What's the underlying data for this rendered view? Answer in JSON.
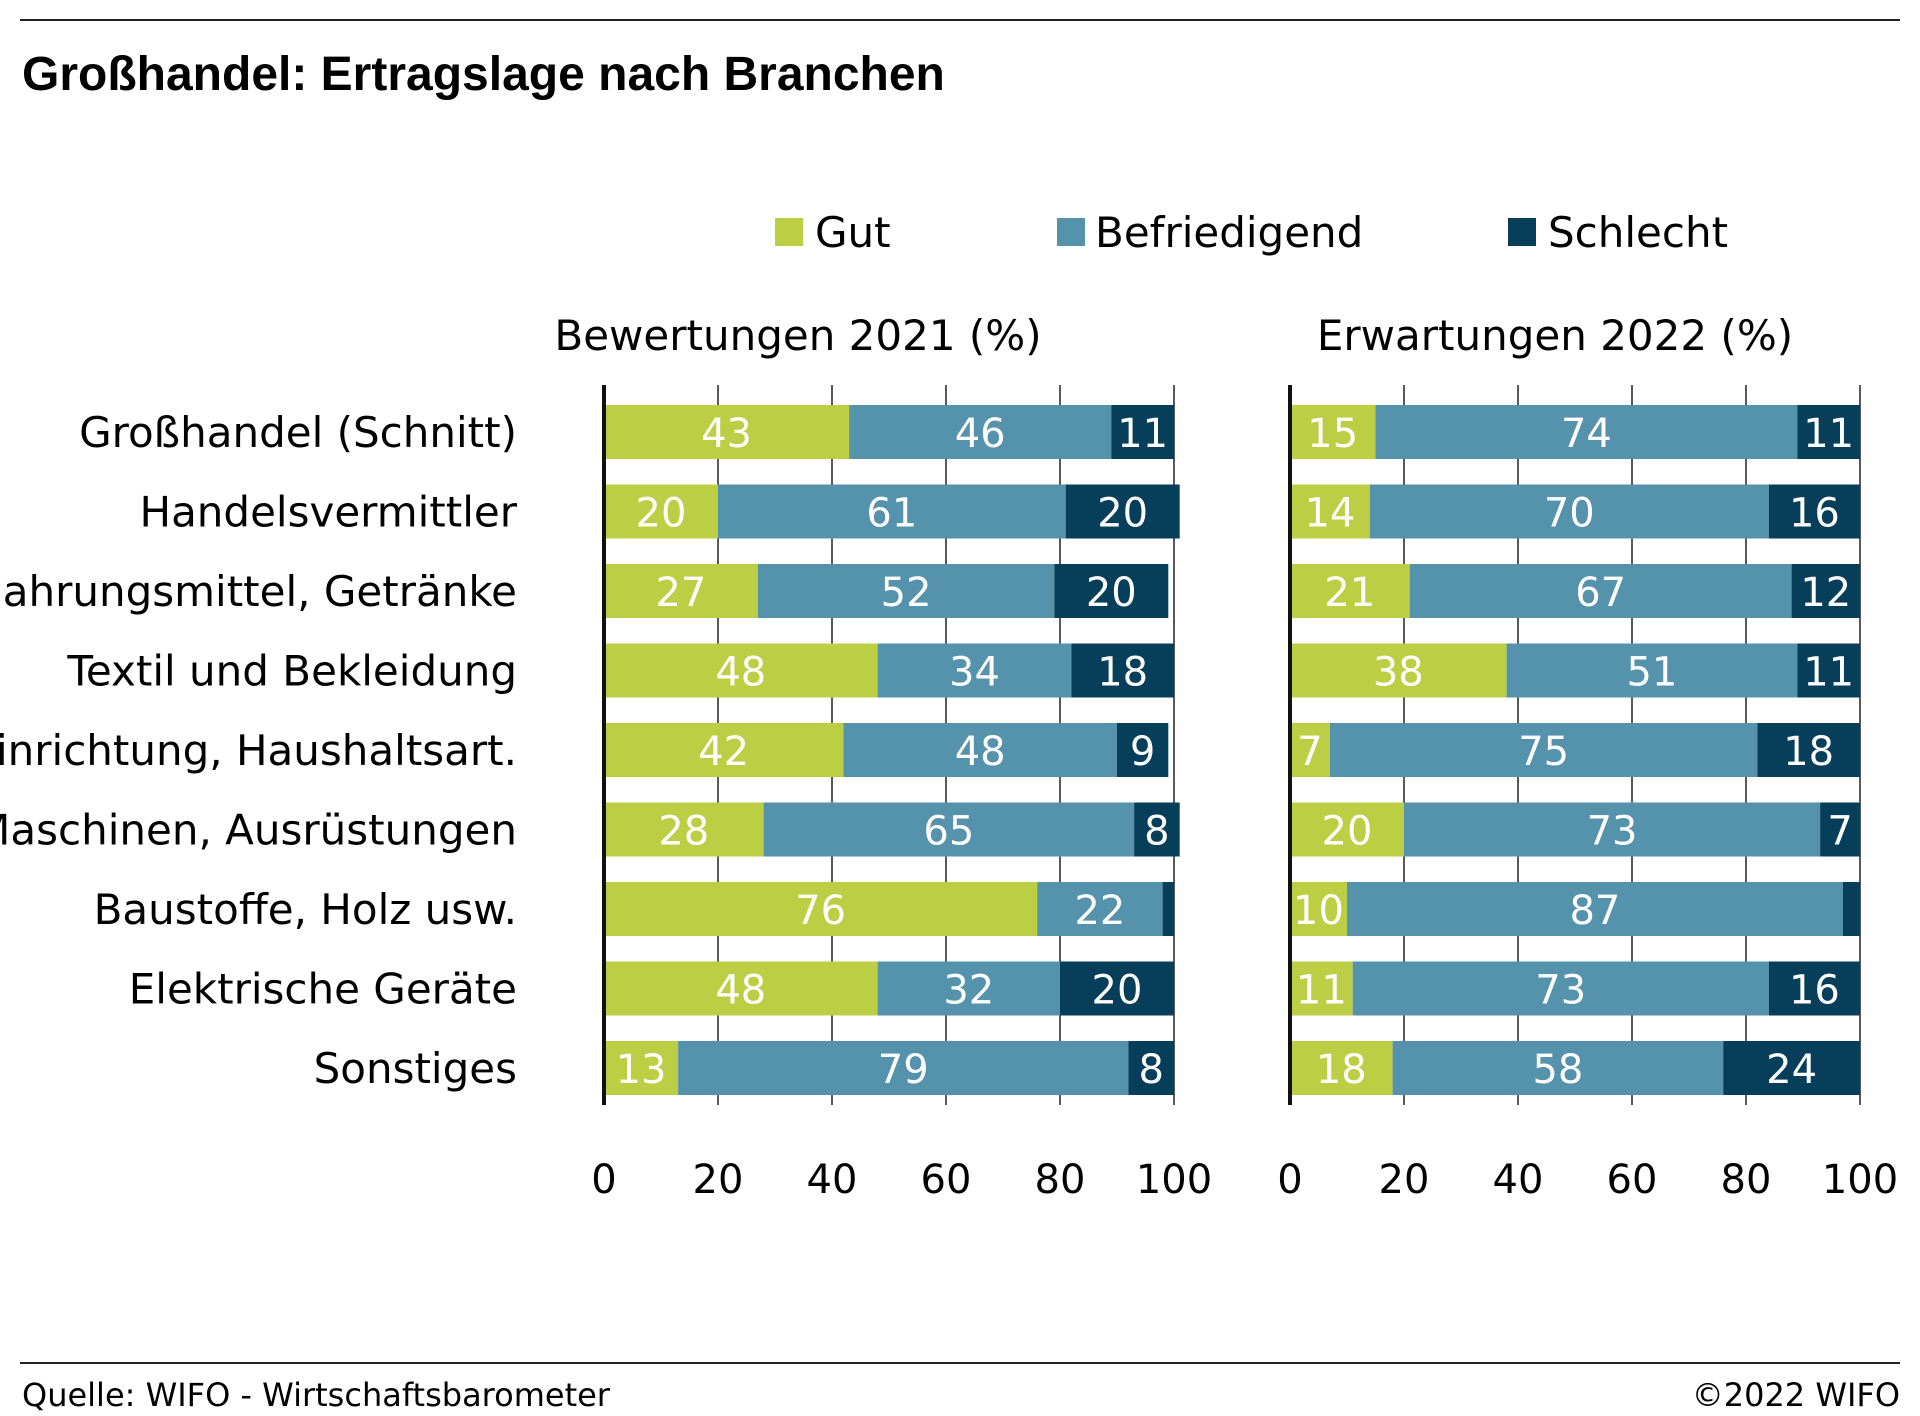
{
  "title": "Großhandel: Ertragslage nach Branchen",
  "legend": [
    {
      "label": "Gut",
      "color": "#bccf44"
    },
    {
      "label": "Befriedigend",
      "color": "#5592ab"
    },
    {
      "label": "Schlecht",
      "color": "#073f5a"
    }
  ],
  "source": "Quelle: WIFO - Wirtschaftsbarometer",
  "copyright": "©2022 WIFO",
  "chart_data": [
    {
      "type": "bar",
      "orientation": "horizontal",
      "stacked": true,
      "title": "Bewertungen 2021 (%)",
      "categories": [
        "Großhandel (Schnitt)",
        "Handelsvermittler",
        "Nahrungsmittel, Getränke",
        "Textil und Bekleidung",
        "Einrichtung, Haushaltsart.",
        "Maschinen, Ausrüstungen",
        "Baustoffe, Holz usw.",
        "Elektrische Geräte",
        "Sonstiges"
      ],
      "series": [
        {
          "name": "Gut",
          "values": [
            43,
            20,
            27,
            48,
            42,
            28,
            76,
            48,
            13
          ],
          "labels": [
            "43",
            "20",
            "27",
            "48",
            "42",
            "28",
            "76",
            "48",
            "13"
          ]
        },
        {
          "name": "Befriedigend",
          "values": [
            46,
            61,
            52,
            34,
            48,
            65,
            22,
            32,
            79
          ],
          "labels": [
            "46",
            "61",
            "52",
            "34",
            "48",
            "65",
            "22",
            "32",
            "79"
          ]
        },
        {
          "name": "Schlecht",
          "values": [
            11,
            20,
            20,
            18,
            9,
            8,
            2,
            20,
            8
          ],
          "labels": [
            "11",
            "20",
            "20",
            "18",
            "9",
            "8",
            "",
            "20",
            "8"
          ]
        }
      ],
      "xlim": [
        0,
        100
      ],
      "xticks": [
        "0",
        "20",
        "40",
        "60",
        "80",
        "100"
      ],
      "grid": true
    },
    {
      "type": "bar",
      "orientation": "horizontal",
      "stacked": true,
      "title": "Erwartungen 2022 (%)",
      "categories": [
        "Großhandel (Schnitt)",
        "Handelsvermittler",
        "Nahrungsmittel, Getränke",
        "Textil und Bekleidung",
        "Einrichtung, Haushaltsart.",
        "Maschinen, Ausrüstungen",
        "Baustoffe, Holz usw.",
        "Elektrische Geräte",
        "Sonstiges"
      ],
      "series": [
        {
          "name": "Gut",
          "values": [
            15,
            14,
            21,
            38,
            7,
            20,
            10,
            11,
            18
          ],
          "labels": [
            "15",
            "14",
            "21",
            "38",
            "7",
            "20",
            "10",
            "11",
            "18"
          ]
        },
        {
          "name": "Befriedigend",
          "values": [
            74,
            70,
            67,
            51,
            75,
            73,
            87,
            73,
            58
          ],
          "labels": [
            "74",
            "70",
            "67",
            "51",
            "75",
            "73",
            "87",
            "73",
            "58"
          ]
        },
        {
          "name": "Schlecht",
          "values": [
            11,
            16,
            12,
            11,
            18,
            7,
            3,
            16,
            24
          ],
          "labels": [
            "11",
            "16",
            "12",
            "11",
            "18",
            "7",
            "",
            "16",
            "24"
          ]
        }
      ],
      "xlim": [
        0,
        100
      ],
      "xticks": [
        "0",
        "20",
        "40",
        "60",
        "80",
        "100"
      ],
      "grid": true
    }
  ]
}
